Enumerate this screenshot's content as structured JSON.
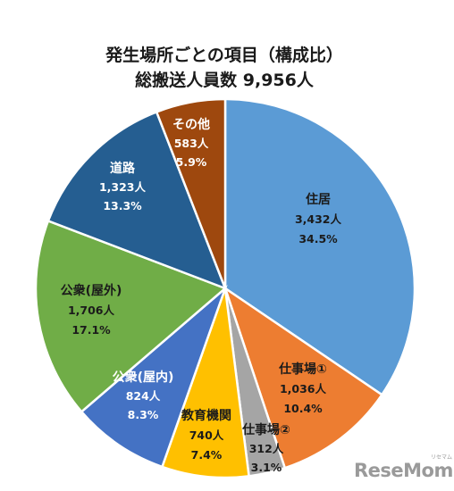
{
  "chart_data": {
    "type": "pie",
    "title": "発生場所ごとの項目（構成比）",
    "subtitle": "総搬送人員数 9,956人",
    "total": 9956,
    "slices": [
      {
        "label": "住居",
        "count": "3,432人",
        "percent_label": "34.5%",
        "value": 34.5,
        "color": "#5b9bd5"
      },
      {
        "label": "仕事場①",
        "count": "1,036人",
        "percent_label": "10.4%",
        "value": 10.4,
        "color": "#ed7d31"
      },
      {
        "label": "仕事場②",
        "count": "312人",
        "percent_label": "3.1%",
        "value": 3.1,
        "color": "#a5a5a5"
      },
      {
        "label": "教育機関",
        "count": "740人",
        "percent_label": "7.4%",
        "value": 7.4,
        "color": "#ffc000"
      },
      {
        "label": "公衆(屋内)",
        "count": "824人",
        "percent_label": "8.3%",
        "value": 8.3,
        "color": "#4472c4"
      },
      {
        "label": "公衆(屋外)",
        "count": "1,706人",
        "percent_label": "17.1%",
        "value": 17.1,
        "color": "#70ad47"
      },
      {
        "label": "道路",
        "count": "1,323人",
        "percent_label": "13.3%",
        "value": 13.3,
        "color": "#255e91"
      },
      {
        "label": "その他",
        "count": "583人",
        "percent_label": "5.9%",
        "value": 5.9,
        "color": "#9e480e"
      }
    ]
  },
  "watermark": {
    "main": "ReseMom",
    "sub": "リセマム"
  }
}
